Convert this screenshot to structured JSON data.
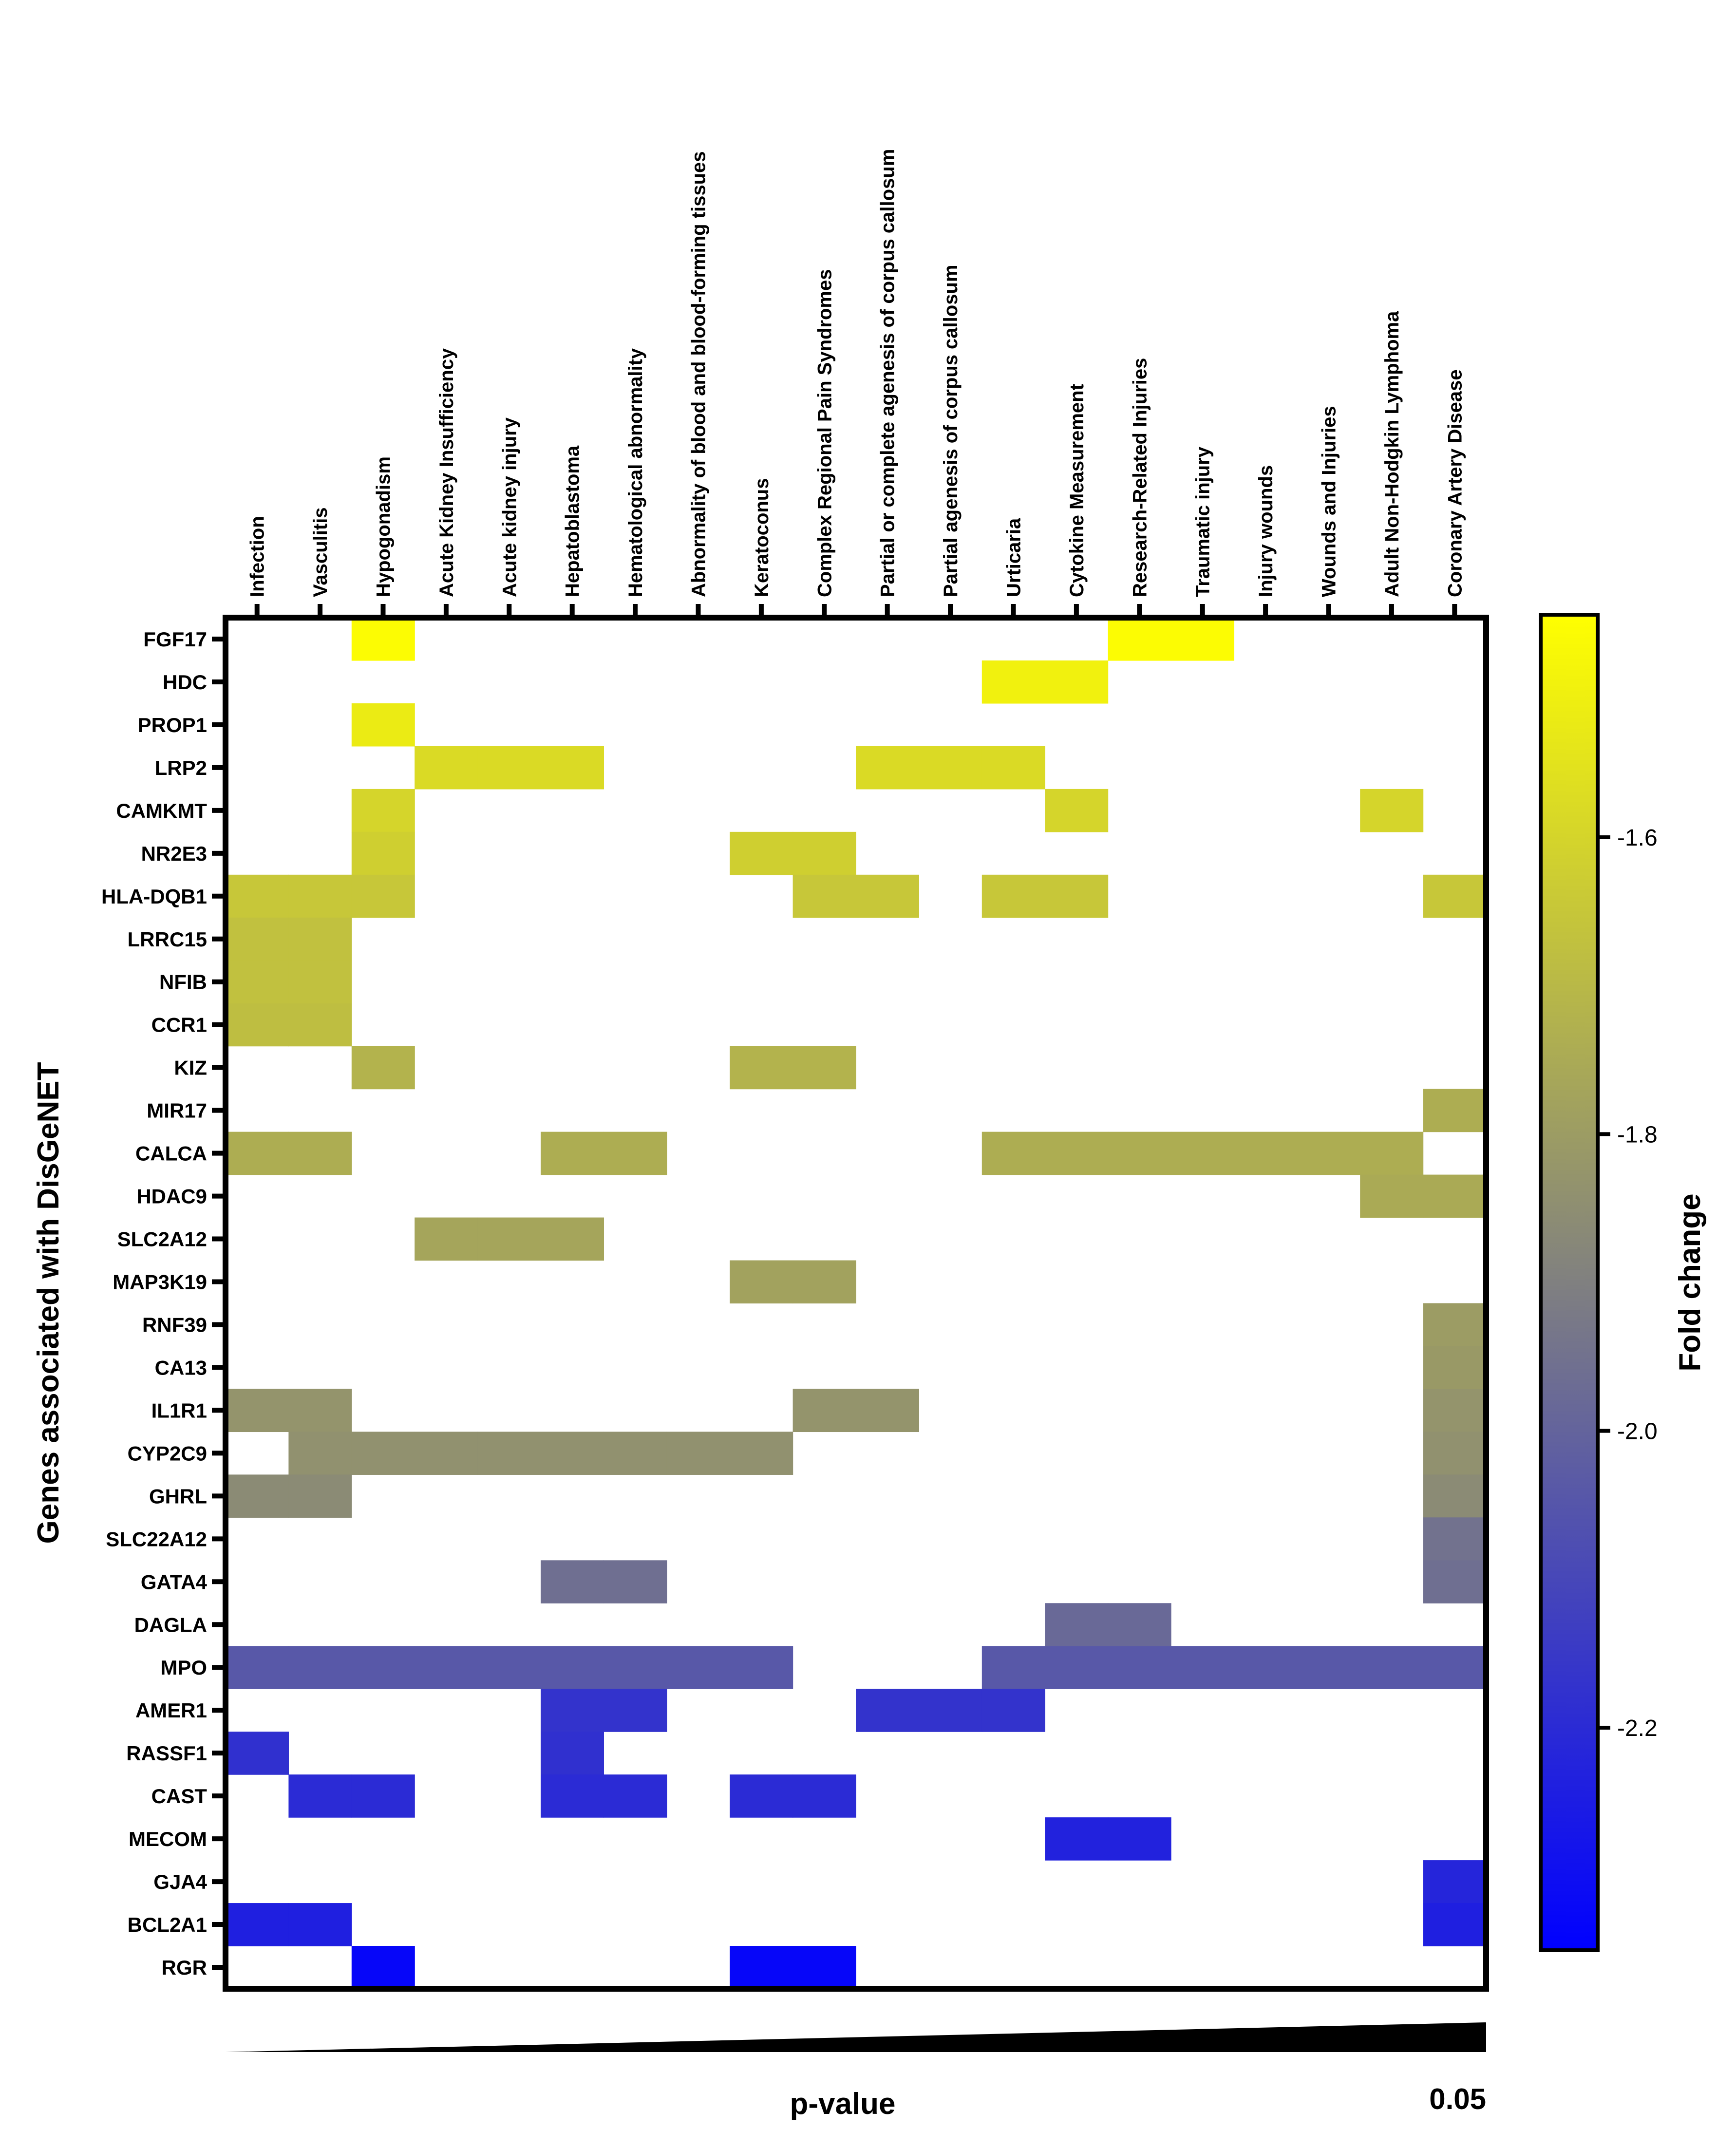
{
  "chart_data": {
    "type": "heatmap",
    "ylabel": "Genes associated with DisGeNET",
    "xlabel": "p-value",
    "p_value_threshold_label": "0.05",
    "colorbar": {
      "label": "Fold change",
      "ticks": [
        -1.6,
        -1.8,
        -2.0,
        -2.2
      ],
      "tick_labels": [
        "-1.6",
        "-1.8",
        "-2.0",
        "-2.2"
      ],
      "range": [
        -2.35,
        -1.45
      ],
      "colors": {
        "low": "#0000ff",
        "mid": "#808080",
        "high": "#ffff00"
      }
    },
    "columns": [
      "Infection",
      "Vasculitis",
      "Hypogonadism",
      "Acute Kidney Insufficiency",
      "Acute kidney injury",
      "Hepatoblastoma",
      "Hematological abnormality",
      "Abnormality of blood and blood-forming tissues",
      "Keratoconus",
      "Complex Regional Pain Syndromes",
      "Partial or complete agenesis of corpus callosum",
      "Partial agenesis of corpus callosum",
      "Urticaria",
      "Cytokine Measurement",
      "Research-Related Injuries",
      "Traumatic injury",
      "Injury wounds",
      "Wounds and Injuries",
      "Adult Non-Hodgkin Lymphoma",
      "Coronary Artery Disease"
    ],
    "rows": [
      {
        "gene": "FGF17",
        "value": -1.46,
        "cols": [
          2,
          14,
          15
        ]
      },
      {
        "gene": "HDC",
        "value": -1.5,
        "cols": [
          12,
          13
        ]
      },
      {
        "gene": "PROP1",
        "value": -1.52,
        "cols": [
          2
        ]
      },
      {
        "gene": "LRP2",
        "value": -1.58,
        "cols": [
          3,
          4,
          5,
          10,
          11,
          12
        ]
      },
      {
        "gene": "CAMKMT",
        "value": -1.6,
        "cols": [
          2,
          13,
          18
        ]
      },
      {
        "gene": "NR2E3",
        "value": -1.62,
        "cols": [
          2,
          8,
          9
        ]
      },
      {
        "gene": "HLA-DQB1",
        "value": -1.65,
        "cols": [
          0,
          1,
          2,
          9,
          10,
          12,
          13,
          19
        ]
      },
      {
        "gene": "LRRC15",
        "value": -1.67,
        "cols": [
          0,
          1
        ]
      },
      {
        "gene": "NFIB",
        "value": -1.67,
        "cols": [
          0,
          1
        ]
      },
      {
        "gene": "CCR1",
        "value": -1.68,
        "cols": [
          0,
          1
        ]
      },
      {
        "gene": "KIZ",
        "value": -1.72,
        "cols": [
          2,
          8,
          9
        ]
      },
      {
        "gene": "MIR17",
        "value": -1.74,
        "cols": [
          19
        ]
      },
      {
        "gene": "CALCA",
        "value": -1.74,
        "cols": [
          0,
          1,
          5,
          6,
          12,
          13,
          14,
          15,
          16,
          17,
          18
        ]
      },
      {
        "gene": "HDAC9",
        "value": -1.75,
        "cols": [
          18,
          19
        ]
      },
      {
        "gene": "SLC2A12",
        "value": -1.77,
        "cols": [
          3,
          4,
          5
        ]
      },
      {
        "gene": "MAP3K19",
        "value": -1.78,
        "cols": [
          8,
          9
        ]
      },
      {
        "gene": "RNF39",
        "value": -1.8,
        "cols": [
          19
        ]
      },
      {
        "gene": "CA13",
        "value": -1.81,
        "cols": [
          19
        ]
      },
      {
        "gene": "IL1R1",
        "value": -1.83,
        "cols": [
          0,
          1,
          9,
          10,
          19
        ]
      },
      {
        "gene": "CYP2C9",
        "value": -1.84,
        "cols": [
          1,
          2,
          3,
          4,
          5,
          6,
          7,
          8,
          19
        ]
      },
      {
        "gene": "GHRL",
        "value": -1.86,
        "cols": [
          0,
          1,
          19
        ]
      },
      {
        "gene": "SLC22A12",
        "value": -1.95,
        "cols": [
          19
        ]
      },
      {
        "gene": "GATA4",
        "value": -1.96,
        "cols": [
          5,
          6,
          19
        ]
      },
      {
        "gene": "DAGLA",
        "value": -1.98,
        "cols": [
          13,
          14
        ]
      },
      {
        "gene": "MPO",
        "value": -2.04,
        "cols": [
          0,
          1,
          2,
          3,
          4,
          5,
          6,
          7,
          8,
          12,
          13,
          14,
          15,
          16,
          17,
          18,
          19
        ]
      },
      {
        "gene": "AMER1",
        "value": -2.17,
        "cols": [
          5,
          6,
          10,
          11,
          12
        ]
      },
      {
        "gene": "RASSF1",
        "value": -2.18,
        "cols": [
          0,
          5
        ]
      },
      {
        "gene": "CAST",
        "value": -2.2,
        "cols": [
          1,
          2,
          5,
          6,
          8,
          9
        ]
      },
      {
        "gene": "MECOM",
        "value": -2.23,
        "cols": [
          13,
          14
        ]
      },
      {
        "gene": "GJA4",
        "value": -2.22,
        "cols": [
          19
        ]
      },
      {
        "gene": "BCL2A1",
        "value": -2.24,
        "cols": [
          0,
          1,
          19
        ]
      },
      {
        "gene": "RGR",
        "value": -2.33,
        "cols": [
          2,
          8,
          9
        ]
      }
    ]
  }
}
